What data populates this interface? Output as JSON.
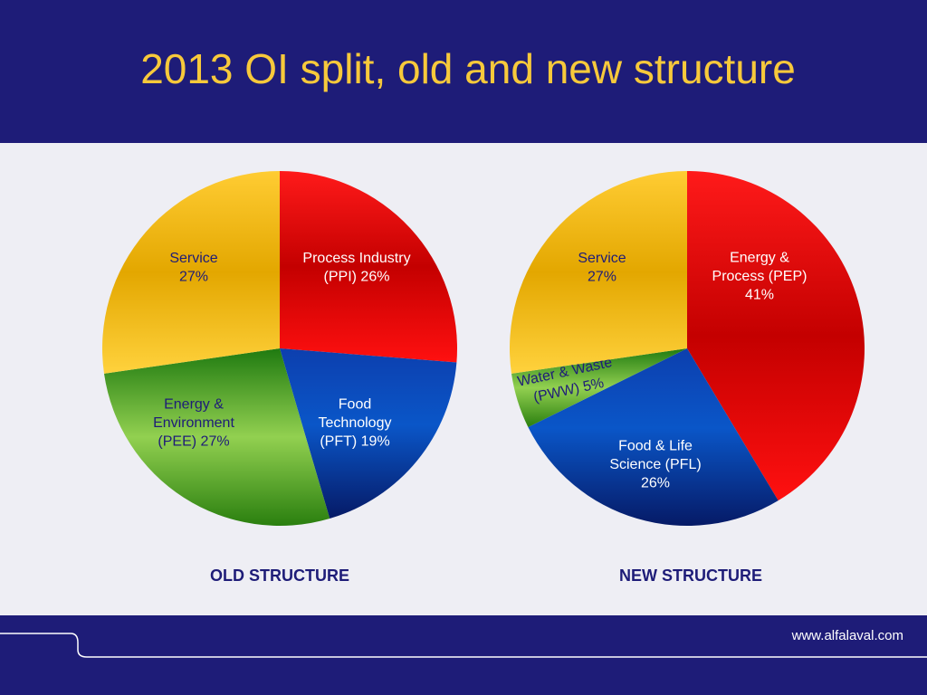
{
  "header": {
    "title": "2013 OI split, old and new structure"
  },
  "footer": {
    "url": "www.alfalaval.com"
  },
  "chart_data": [
    {
      "type": "pie",
      "title": "OLD STRUCTURE",
      "slices": [
        {
          "name": "Process Industry (PPI)",
          "value": 26,
          "label_lines": [
            "Process Industry",
            "(PPI) 26%"
          ],
          "color": "#e60000"
        },
        {
          "name": "Food Technology (PFT)",
          "value": 19,
          "label_lines": [
            "Food",
            "Technology",
            "(PFT) 19%"
          ],
          "color": "#0a2a8c"
        },
        {
          "name": "Energy & Environment (PEE)",
          "value": 27,
          "label_lines": [
            "Energy &",
            "Environment",
            "(PEE) 27%"
          ],
          "color": "#4aa82a"
        },
        {
          "name": "Service",
          "value": 27,
          "label_lines": [
            "Service",
            "27%"
          ],
          "color": "#f2b713"
        }
      ]
    },
    {
      "type": "pie",
      "title": "NEW STRUCTURE",
      "slices": [
        {
          "name": "Energy & Process (PEP)",
          "value": 41,
          "label_lines": [
            "Energy &",
            "Process (PEP)",
            "41%"
          ],
          "color": "#e60000"
        },
        {
          "name": "Food & Life Science (PFL)",
          "value": 26,
          "label_lines": [
            "Food & Life",
            "Science (PFL)",
            "26%"
          ],
          "color": "#0a2a8c"
        },
        {
          "name": "Water & Waste (PWW)",
          "value": 5,
          "label_lines": [
            "Water & Waste",
            "(PWW) 5%"
          ],
          "color": "#4aa82a"
        },
        {
          "name": "Service",
          "value": 27,
          "label_lines": [
            "Service",
            "27%"
          ],
          "color": "#f2b713"
        }
      ]
    }
  ]
}
